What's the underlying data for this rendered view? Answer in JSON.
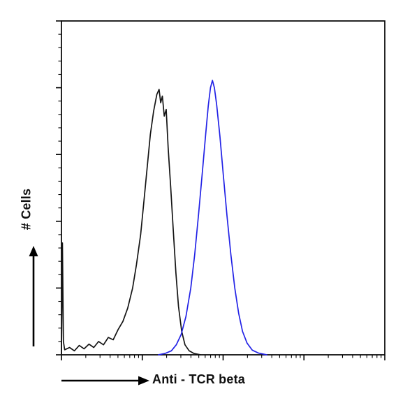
{
  "figure": {
    "background": "#ffffff",
    "border_color": "#000000",
    "tick_color": "#000000"
  },
  "chart_data": {
    "type": "line",
    "subtype": "flow-cytometry-histogram-overlay",
    "title": "",
    "xlabel": "Anti - TCR beta",
    "ylabel": "# Cells",
    "legend": "none",
    "grid": false,
    "x_axis": {
      "scale": "log",
      "decades": 4,
      "tick_labels_visible": false
    },
    "y_axis": {
      "tick_count": 25,
      "major_every": 5,
      "tick_labels_visible": false,
      "range_normalized": [
        0,
        1
      ]
    },
    "series": [
      {
        "name": "black-histogram",
        "color": "#141414",
        "points": [
          [
            0.0,
            0.0
          ],
          [
            0.003,
            0.335
          ],
          [
            0.006,
            0.04
          ],
          [
            0.01,
            0.015
          ],
          [
            0.025,
            0.022
          ],
          [
            0.04,
            0.012
          ],
          [
            0.055,
            0.028
          ],
          [
            0.07,
            0.018
          ],
          [
            0.085,
            0.032
          ],
          [
            0.1,
            0.022
          ],
          [
            0.115,
            0.04
          ],
          [
            0.13,
            0.03
          ],
          [
            0.145,
            0.052
          ],
          [
            0.16,
            0.045
          ],
          [
            0.175,
            0.075
          ],
          [
            0.19,
            0.1
          ],
          [
            0.205,
            0.14
          ],
          [
            0.22,
            0.2
          ],
          [
            0.232,
            0.27
          ],
          [
            0.245,
            0.36
          ],
          [
            0.255,
            0.46
          ],
          [
            0.265,
            0.56
          ],
          [
            0.275,
            0.66
          ],
          [
            0.285,
            0.73
          ],
          [
            0.295,
            0.78
          ],
          [
            0.302,
            0.795
          ],
          [
            0.307,
            0.755
          ],
          [
            0.312,
            0.775
          ],
          [
            0.318,
            0.715
          ],
          [
            0.324,
            0.735
          ],
          [
            0.33,
            0.62
          ],
          [
            0.338,
            0.5
          ],
          [
            0.346,
            0.37
          ],
          [
            0.354,
            0.245
          ],
          [
            0.362,
            0.145
          ],
          [
            0.372,
            0.07
          ],
          [
            0.382,
            0.03
          ],
          [
            0.395,
            0.012
          ],
          [
            0.41,
            0.004
          ],
          [
            0.43,
            0.0
          ]
        ]
      },
      {
        "name": "blue-histogram",
        "color": "#2222e6",
        "points": [
          [
            0.3,
            0.0
          ],
          [
            0.32,
            0.004
          ],
          [
            0.34,
            0.012
          ],
          [
            0.355,
            0.03
          ],
          [
            0.37,
            0.06
          ],
          [
            0.385,
            0.115
          ],
          [
            0.4,
            0.2
          ],
          [
            0.412,
            0.3
          ],
          [
            0.424,
            0.42
          ],
          [
            0.436,
            0.55
          ],
          [
            0.446,
            0.66
          ],
          [
            0.454,
            0.745
          ],
          [
            0.461,
            0.8
          ],
          [
            0.467,
            0.822
          ],
          [
            0.473,
            0.8
          ],
          [
            0.48,
            0.75
          ],
          [
            0.49,
            0.655
          ],
          [
            0.5,
            0.545
          ],
          [
            0.512,
            0.415
          ],
          [
            0.524,
            0.3
          ],
          [
            0.536,
            0.2
          ],
          [
            0.548,
            0.125
          ],
          [
            0.56,
            0.07
          ],
          [
            0.574,
            0.035
          ],
          [
            0.59,
            0.014
          ],
          [
            0.61,
            0.005
          ],
          [
            0.635,
            0.0
          ]
        ]
      }
    ]
  }
}
